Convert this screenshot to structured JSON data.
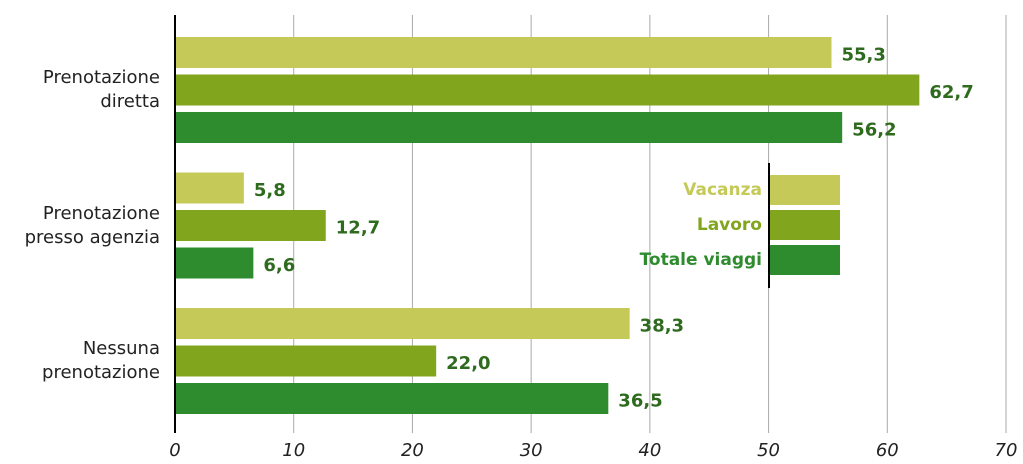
{
  "chart_data": {
    "type": "bar",
    "orientation": "horizontal",
    "categories": [
      "Prenotazione diretta",
      "Prenotazione presso agenzia",
      "Nessuna prenotazione"
    ],
    "series": [
      {
        "name": "Vacanza",
        "color": "#c5c957",
        "values": [
          55.3,
          5.8,
          38.3
        ],
        "value_labels": [
          "55,3",
          "5,8",
          "38,3"
        ]
      },
      {
        "name": "Lavoro",
        "color": "#82a51e",
        "values": [
          62.7,
          12.7,
          22.0
        ],
        "value_labels": [
          "62,7",
          "12,7",
          "22,0"
        ]
      },
      {
        "name": "Totale viaggi",
        "color": "#2e8b2e",
        "values": [
          56.2,
          6.6,
          36.5
        ],
        "value_labels": [
          "56,2",
          "6,6",
          "36,5"
        ]
      }
    ],
    "xlim": [
      0,
      70
    ],
    "xticks": [
      0,
      10,
      20,
      30,
      40,
      50,
      60,
      70
    ],
    "grid": true,
    "legend": "right"
  }
}
